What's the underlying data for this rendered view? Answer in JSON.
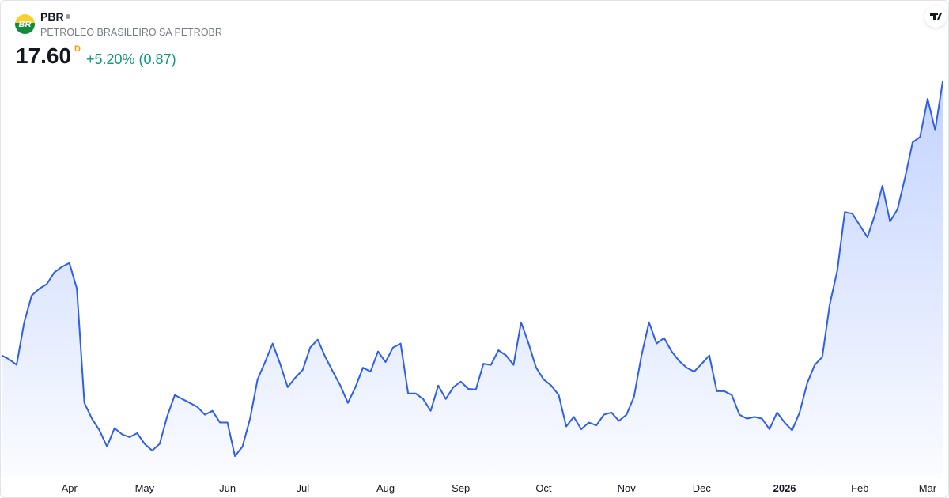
{
  "header": {
    "symbol": "PBR",
    "logo_text": "BR",
    "company": "PETROLEO BRASILEIRO SA PETROBR",
    "price": "17.60",
    "interval": "D",
    "change": "+5.20% (0.87)"
  },
  "chart_data": {
    "type": "area",
    "color": "#2f5fe8",
    "categories": [
      null,
      null,
      null,
      null,
      null,
      null,
      null,
      null,
      null,
      "Apr",
      null,
      null,
      null,
      null,
      null,
      null,
      null,
      null,
      null,
      "May",
      null,
      null,
      null,
      null,
      null,
      null,
      null,
      null,
      null,
      null,
      "Jun",
      null,
      null,
      null,
      null,
      null,
      null,
      null,
      null,
      null,
      "Jul",
      null,
      null,
      null,
      null,
      null,
      null,
      null,
      null,
      null,
      null,
      "Aug",
      null,
      null,
      null,
      null,
      null,
      null,
      null,
      null,
      null,
      "Sep",
      null,
      null,
      null,
      null,
      null,
      null,
      null,
      null,
      null,
      null,
      "Oct",
      null,
      null,
      null,
      null,
      null,
      null,
      null,
      null,
      null,
      null,
      "Nov",
      null,
      null,
      null,
      null,
      null,
      null,
      null,
      null,
      null,
      "Dec",
      null,
      null,
      null,
      null,
      null,
      null,
      null,
      null,
      null,
      null,
      "2026",
      null,
      null,
      null,
      null,
      null,
      null,
      null,
      null,
      null,
      "Feb",
      null,
      null,
      null,
      null,
      null,
      null,
      null,
      null,
      "Mar",
      null,
      null
    ],
    "values": [
      12.71,
      12.64,
      12.54,
      13.3,
      13.78,
      13.9,
      13.98,
      14.19,
      14.29,
      14.36,
      13.9,
      11.86,
      11.58,
      11.37,
      11.08,
      11.41,
      11.3,
      11.25,
      11.32,
      11.13,
      11.01,
      11.13,
      11.62,
      12.0,
      11.93,
      11.86,
      11.79,
      11.65,
      11.72,
      11.51,
      11.51,
      10.91,
      11.08,
      11.58,
      12.28,
      12.59,
      12.92,
      12.56,
      12.14,
      12.31,
      12.45,
      12.85,
      12.99,
      12.68,
      12.42,
      12.17,
      11.86,
      12.14,
      12.49,
      12.42,
      12.78,
      12.59,
      12.85,
      12.92,
      12.03,
      12.03,
      11.93,
      11.72,
      12.17,
      11.93,
      12.14,
      12.24,
      12.11,
      12.1,
      12.56,
      12.54,
      12.8,
      12.71,
      12.54,
      13.3,
      12.92,
      12.49,
      12.28,
      12.17,
      12.0,
      11.44,
      11.61,
      11.39,
      11.51,
      11.46,
      11.65,
      11.69,
      11.54,
      11.65,
      11.97,
      12.71,
      13.3,
      12.92,
      13.02,
      12.78,
      12.61,
      12.49,
      12.42,
      12.56,
      12.71,
      12.07,
      12.07,
      12.0,
      11.65,
      11.58,
      11.61,
      11.58,
      11.39,
      11.69,
      11.51,
      11.37,
      11.69,
      12.21,
      12.54,
      12.68,
      13.62,
      14.22,
      15.27,
      15.24,
      15.03,
      14.82,
      15.22,
      15.74,
      15.1,
      15.32,
      15.88,
      16.51,
      16.61,
      17.29,
      16.73,
      17.6
    ],
    "ylim": [
      10.6,
      17.7
    ],
    "bold_categories": [
      "2026"
    ]
  }
}
